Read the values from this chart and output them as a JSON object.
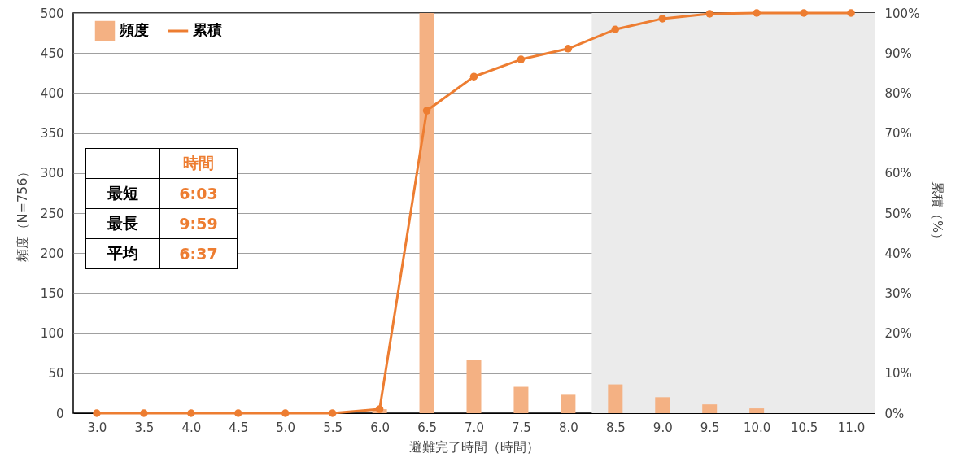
{
  "chart_data": {
    "type": "bar",
    "xlabel": "避難完了時間（時間）",
    "ylabel": "頻度（N=756）",
    "y2label": "累積（%）",
    "x": [
      3.0,
      3.5,
      4.0,
      4.5,
      5.0,
      5.5,
      6.0,
      6.5,
      7.0,
      7.5,
      8.0,
      8.5,
      9.0,
      9.5,
      10.0,
      10.5,
      11.0
    ],
    "xlim": [
      2.75,
      11.25
    ],
    "xticks": [
      {
        "value": 3,
        "label": "3.0"
      },
      {
        "value": 3.5,
        "label": "3.5"
      },
      {
        "value": 4,
        "label": "4.0"
      },
      {
        "value": 4.5,
        "label": "4.5"
      },
      {
        "value": 5,
        "label": "5.0"
      },
      {
        "value": 5.5,
        "label": "5.5"
      },
      {
        "value": 6,
        "label": "6.0"
      },
      {
        "value": 6.5,
        "label": "6.5"
      },
      {
        "value": 7,
        "label": "7.0"
      },
      {
        "value": 7.5,
        "label": "7.5"
      },
      {
        "value": 8,
        "label": "8.0"
      },
      {
        "value": 8.5,
        "label": "8.5"
      },
      {
        "value": 9,
        "label": "9.0"
      },
      {
        "value": 9.5,
        "label": "9.5"
      },
      {
        "value": 10,
        "label": "10.0"
      },
      {
        "value": 10.5,
        "label": "10.5"
      },
      {
        "value": 11,
        "label": "11.0"
      }
    ],
    "ylim": [
      0,
      500
    ],
    "yticks": [
      0,
      50,
      100,
      150,
      200,
      250,
      300,
      350,
      400,
      450,
      500
    ],
    "y2lim": [
      0,
      100
    ],
    "y2ticks": [
      {
        "value": 0,
        "label": "0%"
      },
      {
        "value": 10,
        "label": "10%"
      },
      {
        "value": 20,
        "label": "20%"
      },
      {
        "value": 30,
        "label": "30%"
      },
      {
        "value": 40,
        "label": "40%"
      },
      {
        "value": 50,
        "label": "50%"
      },
      {
        "value": 60,
        "label": "60%"
      },
      {
        "value": 70,
        "label": "70%"
      },
      {
        "value": 80,
        "label": "80%"
      },
      {
        "value": 90,
        "label": "90%"
      },
      {
        "value": 100,
        "label": "100%"
      }
    ],
    "series": [
      {
        "name": "頻度",
        "color": "#f4b183",
        "values": [
          0,
          0,
          0,
          0,
          0,
          0,
          5,
          500,
          66,
          33,
          23,
          36,
          20,
          11,
          6,
          0,
          0
        ]
      },
      {
        "name": "累積",
        "type": "line",
        "axis": "y2",
        "color": "#ed7d31",
        "marker": "circle",
        "values": [
          0,
          0,
          0,
          0,
          0,
          0,
          1,
          75.6,
          84.1,
          88.4,
          91.1,
          95.9,
          98.6,
          99.8,
          100,
          100,
          100
        ]
      }
    ],
    "bands": [
      {
        "axis": "x",
        "from": 8.25,
        "to": 11.25,
        "color": "#ebebeb"
      }
    ],
    "grid": "y",
    "legend": "top left",
    "annotations": [
      "時間",
      "最短",
      "6:03",
      "最長",
      "9:59",
      "平均",
      "6:37"
    ]
  }
}
